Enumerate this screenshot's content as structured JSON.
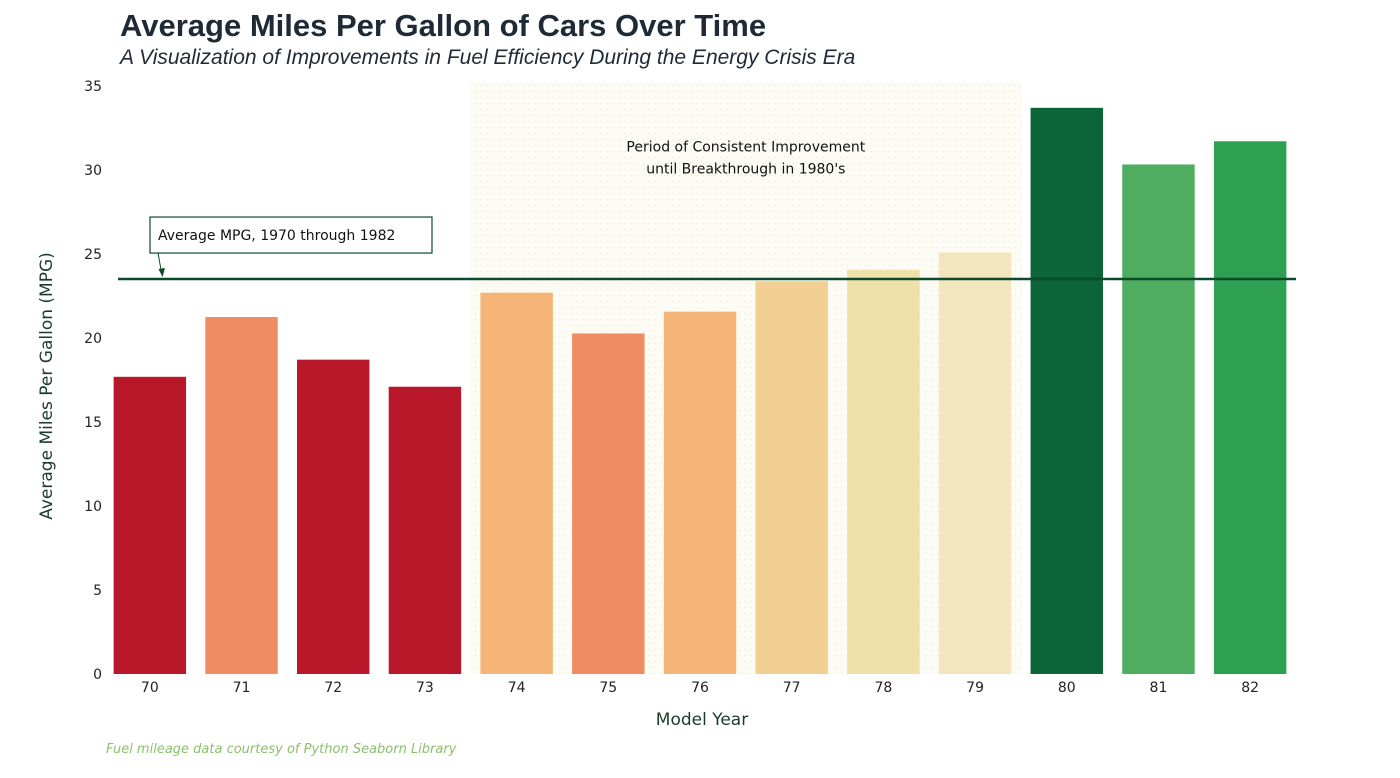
{
  "chart_data": {
    "type": "bar",
    "title": "Average Miles Per Gallon of Cars Over Time",
    "subtitle": "A Visualization of Improvements in Fuel Efficiency During the Energy Crisis Era",
    "xlabel": "Model Year",
    "ylabel": "Average Miles Per Gallon (MPG)",
    "ylim": [
      0,
      35
    ],
    "yticks": [
      0,
      5,
      10,
      15,
      20,
      25,
      30,
      35
    ],
    "grid": false,
    "categories": [
      "70",
      "71",
      "72",
      "73",
      "74",
      "75",
      "76",
      "77",
      "78",
      "79",
      "80",
      "81",
      "82"
    ],
    "values": [
      17.69,
      21.25,
      18.71,
      17.1,
      22.7,
      20.27,
      21.57,
      23.38,
      24.06,
      25.09,
      33.7,
      30.33,
      31.71
    ],
    "bar_colors": [
      "#b8182a",
      "#f08c62",
      "#b8182a",
      "#b8182a",
      "#f5b578",
      "#f08c62",
      "#f5b578",
      "#f3cf94",
      "#efdfa8",
      "#f3e6bd",
      "#0b6538",
      "#4fad60",
      "#2f9f52"
    ],
    "reference_line": {
      "value": 23.51,
      "label": "Average MPG, 1970 through 1982",
      "color": "#0b4a2b"
    },
    "highlight_band": {
      "from": "74",
      "to": "79",
      "label_lines": [
        "Period of Consistent Improvement",
        "until Breakthrough in 1980's"
      ]
    },
    "footnote": "Fuel mileage data courtesy of Python Seaborn Library"
  }
}
